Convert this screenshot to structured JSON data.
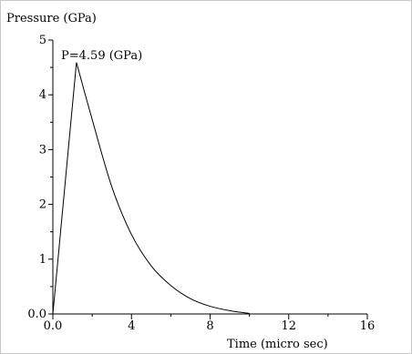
{
  "chart_data": {
    "type": "line",
    "ylabel": "Pressure (GPa)",
    "xlabel": "Time (micro sec)",
    "annotation": "P=4.59 (GPa)",
    "xlim": [
      0,
      16
    ],
    "ylim": [
      0,
      5
    ],
    "x_ticks": [
      0,
      4,
      8,
      12,
      16
    ],
    "x_tick_labels": [
      "0.0",
      "4",
      "8",
      "12",
      "16"
    ],
    "y_ticks": [
      0,
      1,
      2,
      3,
      4,
      5
    ],
    "y_tick_labels": [
      "0.0",
      "1",
      "2",
      "3",
      "4",
      "5"
    ],
    "grid": false,
    "series": [
      {
        "x": [
          0,
          1.2,
          2,
          3,
          4,
          5,
          6,
          7,
          8,
          9,
          10
        ],
        "y": [
          0,
          4.59,
          3.55,
          2.32,
          1.45,
          0.88,
          0.52,
          0.28,
          0.14,
          0.06,
          0.01
        ]
      }
    ],
    "colors": {
      "axis": "#000000",
      "line": "#000000"
    }
  }
}
